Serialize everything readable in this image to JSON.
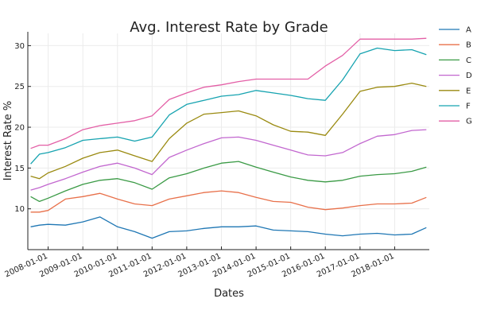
{
  "chart_data": {
    "type": "line",
    "title": "Avg. Interest Rate by Grade",
    "xlabel": "Dates",
    "ylabel": "Interest Rate %",
    "x_scale": "date",
    "xlim": [
      "2007-06-01",
      "2019-01-01"
    ],
    "ylim": [
      5,
      31.5
    ],
    "x_ticks": [
      "2008-01-01",
      "2009-01-01",
      "2010-01-01",
      "2011-01-01",
      "2012-01-01",
      "2013-01-01",
      "2014-01-01",
      "2015-01-01",
      "2016-01-01",
      "2017-01-01",
      "2018-01-01"
    ],
    "y_ticks": [
      10,
      15,
      20,
      25,
      30
    ],
    "grid": true,
    "legend_position": "outside-right-top",
    "x": [
      "2007-07",
      "2007-10",
      "2008-01",
      "2008-07",
      "2009-01",
      "2009-07",
      "2010-01",
      "2010-07",
      "2011-01",
      "2011-07",
      "2012-01",
      "2012-07",
      "2013-01",
      "2013-07",
      "2014-01",
      "2014-07",
      "2015-01",
      "2015-07",
      "2016-01",
      "2016-07",
      "2017-01",
      "2017-07",
      "2018-01",
      "2018-07",
      "2018-12"
    ],
    "series": [
      {
        "name": "A",
        "color": "#1f77b4",
        "values": [
          7.8,
          8.0,
          8.1,
          8.0,
          8.4,
          9.0,
          7.8,
          7.2,
          6.4,
          7.2,
          7.3,
          7.6,
          7.8,
          7.8,
          7.9,
          7.4,
          7.3,
          7.2,
          6.9,
          6.7,
          6.9,
          7.0,
          6.8,
          6.9,
          7.7
        ]
      },
      {
        "name": "B",
        "color": "#e8704a",
        "values": [
          9.6,
          9.6,
          9.8,
          11.2,
          11.5,
          11.9,
          11.2,
          10.6,
          10.4,
          11.2,
          11.6,
          12.0,
          12.2,
          12.0,
          11.4,
          10.9,
          10.8,
          10.2,
          9.9,
          10.1,
          10.4,
          10.6,
          10.6,
          10.7,
          11.4
        ]
      },
      {
        "name": "C",
        "color": "#3a9a45",
        "values": [
          11.5,
          10.9,
          11.3,
          12.2,
          13.0,
          13.5,
          13.7,
          13.2,
          12.4,
          13.8,
          14.3,
          15.0,
          15.6,
          15.8,
          15.1,
          14.5,
          13.9,
          13.5,
          13.3,
          13.5,
          14.0,
          14.2,
          14.3,
          14.6,
          15.1
        ]
      },
      {
        "name": "D",
        "color": "#c267cf",
        "values": [
          12.3,
          12.6,
          13.0,
          13.7,
          14.5,
          15.2,
          15.6,
          15.0,
          14.2,
          16.3,
          17.2,
          18.0,
          18.7,
          18.8,
          18.4,
          17.8,
          17.2,
          16.6,
          16.5,
          16.9,
          18.0,
          18.9,
          19.1,
          19.6,
          19.7
        ]
      },
      {
        "name": "E",
        "color": "#9a8a10",
        "values": [
          14.0,
          13.7,
          14.4,
          15.2,
          16.2,
          16.9,
          17.2,
          16.5,
          15.8,
          18.6,
          20.5,
          21.6,
          21.8,
          22.0,
          21.4,
          20.3,
          19.5,
          19.4,
          19.0,
          21.6,
          24.4,
          24.9,
          25.0,
          25.4,
          25.0
        ]
      },
      {
        "name": "F",
        "color": "#16a3b0",
        "values": [
          15.5,
          16.7,
          16.9,
          17.5,
          18.4,
          18.6,
          18.8,
          18.3,
          18.8,
          21.5,
          22.8,
          23.3,
          23.8,
          24.0,
          24.5,
          24.2,
          23.9,
          23.5,
          23.3,
          25.8,
          29.0,
          29.7,
          29.4,
          29.5,
          28.9
        ]
      },
      {
        "name": "G",
        "color": "#e35fa6",
        "values": [
          17.4,
          17.8,
          17.8,
          18.6,
          19.7,
          20.2,
          20.5,
          20.8,
          21.4,
          23.4,
          24.2,
          24.9,
          25.2,
          25.6,
          25.9,
          25.9,
          25.9,
          25.9,
          27.5,
          28.8,
          30.8,
          30.8,
          30.8,
          30.8,
          30.9
        ]
      }
    ]
  }
}
